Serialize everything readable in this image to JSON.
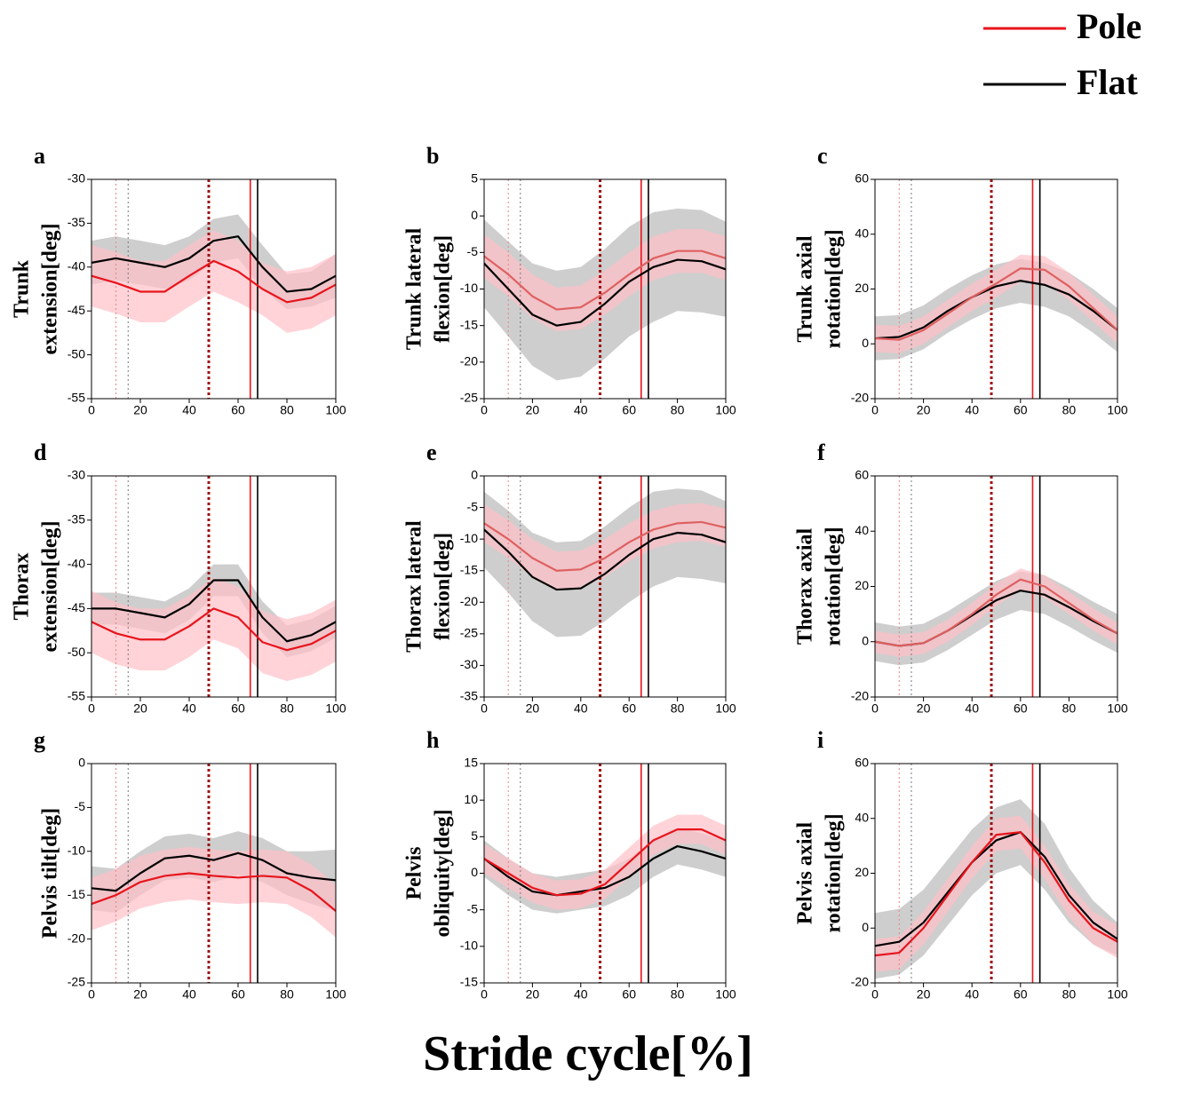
{
  "xlabel": "Stride cycle[%]",
  "events": [
    {
      "x": 10,
      "color": "#f08080",
      "style": "dotted"
    },
    {
      "x": 15,
      "color": "#777777",
      "style": "dotted"
    },
    {
      "x": 48,
      "color": "#a01010",
      "style": "thick-dotted"
    },
    {
      "x": 65,
      "color": "#e8141c",
      "style": "solid"
    },
    {
      "x": 68,
      "color": "#000000",
      "style": "solid"
    }
  ],
  "chart_data": [
    {
      "type": "line",
      "label": "a",
      "ylabel": [
        "Trunk",
        "extension[deg]"
      ],
      "x": [
        0,
        10,
        20,
        30,
        40,
        50,
        60,
        70,
        80,
        90,
        100
      ],
      "xlim": [
        0,
        100
      ],
      "xticks": [
        0,
        20,
        40,
        60,
        80,
        100
      ],
      "ylim": [
        -55,
        -30
      ],
      "yticks": [
        -55,
        -50,
        -45,
        -40,
        -35,
        -30
      ],
      "series": [
        {
          "name": "Pole",
          "color": "#e8141c",
          "band_color": "#ffc0c8",
          "values": [
            -41,
            -41.8,
            -42.8,
            -42.8,
            -41,
            -39.3,
            -40.5,
            -42.5,
            -44,
            -43.5,
            -42
          ],
          "sd": [
            3.5,
            3.5,
            3.5,
            3.5,
            3.5,
            3.5,
            3.5,
            3,
            3.5,
            3.5,
            3.5
          ]
        },
        {
          "name": "Flat",
          "color": "#000000",
          "band_color": "#bdbdbd",
          "values": [
            -39.5,
            -39,
            -39.5,
            -40,
            -39,
            -37,
            -36.5,
            -40,
            -42.8,
            -42.5,
            -41
          ],
          "sd": [
            2.5,
            2.5,
            2.5,
            2.5,
            2.5,
            2.5,
            2.5,
            2.5,
            2,
            2,
            2.5
          ]
        }
      ]
    },
    {
      "type": "line",
      "label": "b",
      "ylabel": [
        "Trunk lateral",
        "flexion[deg]"
      ],
      "x": [
        0,
        10,
        20,
        30,
        40,
        50,
        60,
        70,
        80,
        90,
        100
      ],
      "xlim": [
        0,
        100
      ],
      "xticks": [
        0,
        20,
        40,
        60,
        80,
        100
      ],
      "ylim": [
        -25,
        5
      ],
      "yticks": [
        -25,
        -20,
        -15,
        -10,
        -5,
        0,
        5
      ],
      "series": [
        {
          "name": "Pole",
          "color": "#e06060",
          "band_color": "#ffc0c8",
          "values": [
            -5.5,
            -8,
            -11,
            -12.8,
            -12.5,
            -10.5,
            -8,
            -5.8,
            -4.8,
            -4.8,
            -5.8
          ],
          "sd": [
            3,
            3,
            3,
            3,
            3,
            3,
            3,
            3,
            3,
            3,
            3
          ]
        },
        {
          "name": "Flat",
          "color": "#000000",
          "band_color": "#bdbdbd",
          "values": [
            -6.5,
            -10,
            -13.5,
            -15,
            -14.5,
            -12,
            -9,
            -7,
            -6,
            -6.2,
            -7.3
          ],
          "sd": [
            6,
            6.5,
            7,
            7.5,
            7.5,
            7.5,
            7.5,
            7.5,
            7,
            7,
            6.5
          ]
        }
      ]
    },
    {
      "type": "line",
      "label": "c",
      "ylabel": [
        "Trunk axial",
        "rotation[deg]"
      ],
      "x": [
        0,
        10,
        20,
        30,
        40,
        50,
        60,
        70,
        80,
        90,
        100
      ],
      "xlim": [
        0,
        100
      ],
      "xticks": [
        0,
        20,
        40,
        60,
        80,
        100
      ],
      "ylim": [
        -20,
        60
      ],
      "yticks": [
        -20,
        0,
        20,
        40,
        60
      ],
      "series": [
        {
          "name": "Pole",
          "color": "#e06060",
          "band_color": "#ffc0c8",
          "values": [
            2,
            1.5,
            5,
            11,
            17,
            22,
            27.5,
            27,
            21,
            13,
            5
          ],
          "sd": [
            5,
            5,
            5,
            5,
            5,
            5,
            5,
            5,
            5,
            5,
            5
          ]
        },
        {
          "name": "Flat",
          "color": "#000000",
          "band_color": "#bdbdbd",
          "values": [
            2,
            2.5,
            6,
            12,
            17,
            21,
            23,
            21.5,
            18,
            12,
            5
          ],
          "sd": [
            8,
            8,
            8,
            8,
            8,
            8,
            8,
            8,
            8,
            8,
            8
          ]
        }
      ]
    },
    {
      "type": "line",
      "label": "d",
      "ylabel": [
        "Thorax",
        "extension[deg]"
      ],
      "x": [
        0,
        10,
        20,
        30,
        40,
        50,
        60,
        70,
        80,
        90,
        100
      ],
      "xlim": [
        0,
        100
      ],
      "xticks": [
        0,
        20,
        40,
        60,
        80,
        100
      ],
      "ylim": [
        -55,
        -30
      ],
      "yticks": [
        -55,
        -50,
        -45,
        -40,
        -35,
        -30
      ],
      "series": [
        {
          "name": "Pole",
          "color": "#e8141c",
          "band_color": "#ffc0c8",
          "values": [
            -46.5,
            -47.8,
            -48.5,
            -48.5,
            -47,
            -45,
            -46,
            -48.8,
            -49.7,
            -49,
            -47.5
          ],
          "sd": [
            3.5,
            3.5,
            3.5,
            3.5,
            3.5,
            3.5,
            3.5,
            3.5,
            3.5,
            3.5,
            3.5
          ]
        },
        {
          "name": "Flat",
          "color": "#000000",
          "band_color": "#bdbdbd",
          "values": [
            -45,
            -45,
            -45.5,
            -46,
            -44.5,
            -41.8,
            -41.8,
            -46,
            -48.7,
            -48,
            -46.5
          ],
          "sd": [
            1.8,
            1.8,
            1.8,
            1.8,
            1.8,
            1.8,
            1.8,
            1.8,
            1.8,
            1.8,
            1.8
          ]
        }
      ]
    },
    {
      "type": "line",
      "label": "e",
      "ylabel": [
        "Thorax lateral",
        "flexion[deg]"
      ],
      "x": [
        0,
        10,
        20,
        30,
        40,
        50,
        60,
        70,
        80,
        90,
        100
      ],
      "xlim": [
        0,
        100
      ],
      "xticks": [
        0,
        20,
        40,
        60,
        80,
        100
      ],
      "ylim": [
        -35,
        0
      ],
      "yticks": [
        -35,
        -30,
        -25,
        -20,
        -15,
        -10,
        -5,
        0
      ],
      "series": [
        {
          "name": "Pole",
          "color": "#e06060",
          "band_color": "#ffc0c8",
          "values": [
            -7.5,
            -10,
            -13,
            -15,
            -14.8,
            -13,
            -10.5,
            -8.5,
            -7.5,
            -7.3,
            -8.2
          ],
          "sd": [
            3,
            3,
            3,
            3,
            3,
            3,
            3,
            3,
            3,
            3,
            3
          ]
        },
        {
          "name": "Flat",
          "color": "#000000",
          "band_color": "#bdbdbd",
          "values": [
            -8.5,
            -12,
            -16,
            -18,
            -17.8,
            -15.5,
            -12.5,
            -10,
            -9,
            -9.3,
            -10.5
          ],
          "sd": [
            6,
            6.5,
            7,
            7.5,
            7.5,
            7.5,
            7.5,
            7.5,
            7,
            7,
            6.5
          ]
        }
      ]
    },
    {
      "type": "line",
      "label": "f",
      "ylabel": [
        "Thorax axial",
        "rotation[deg]"
      ],
      "x": [
        0,
        10,
        20,
        30,
        40,
        50,
        60,
        70,
        80,
        90,
        100
      ],
      "xlim": [
        0,
        100
      ],
      "xticks": [
        0,
        20,
        40,
        60,
        80,
        100
      ],
      "ylim": [
        -20,
        60
      ],
      "yticks": [
        -20,
        0,
        20,
        40,
        60
      ],
      "series": [
        {
          "name": "Pole",
          "color": "#e06060",
          "band_color": "#ffc0c8",
          "values": [
            0,
            -1.5,
            -0.5,
            4,
            10,
            17,
            22.5,
            20,
            14,
            8,
            3
          ],
          "sd": [
            4,
            4,
            4,
            4,
            4,
            4,
            4,
            4,
            4,
            4,
            4
          ]
        },
        {
          "name": "Flat",
          "color": "#000000",
          "band_color": "#bdbdbd",
          "values": [
            0,
            -1.5,
            -0.5,
            4,
            9.5,
            15,
            18.5,
            17,
            12.5,
            7.5,
            3
          ],
          "sd": [
            7,
            7,
            7,
            7,
            7,
            7,
            7,
            7,
            7,
            7,
            7
          ]
        }
      ]
    },
    {
      "type": "line",
      "label": "g",
      "ylabel": [
        "Pelvis tilt[deg]"
      ],
      "x": [
        0,
        10,
        20,
        30,
        40,
        50,
        60,
        70,
        80,
        90,
        100
      ],
      "xlim": [
        0,
        100
      ],
      "xticks": [
        0,
        20,
        40,
        60,
        80,
        100
      ],
      "ylim": [
        -25,
        0
      ],
      "yticks": [
        -25,
        -20,
        -15,
        -10,
        -5,
        0
      ],
      "series": [
        {
          "name": "Pole",
          "color": "#e8141c",
          "band_color": "#ffc0c8",
          "values": [
            -16,
            -15,
            -13.5,
            -12.8,
            -12.5,
            -12.8,
            -13,
            -12.8,
            -13,
            -14.5,
            -16.8
          ],
          "sd": [
            3,
            3,
            3,
            3,
            3,
            3,
            3,
            3,
            3,
            3,
            3
          ]
        },
        {
          "name": "Flat",
          "color": "#000000",
          "band_color": "#bdbdbd",
          "values": [
            -14.2,
            -14.5,
            -12.5,
            -10.8,
            -10.5,
            -11,
            -10.2,
            -11,
            -12.5,
            -13,
            -13.3
          ],
          "sd": [
            2.5,
            2.5,
            2.5,
            2.5,
            2.5,
            2.5,
            2.5,
            2.5,
            2.5,
            3,
            3.5
          ]
        }
      ]
    },
    {
      "type": "line",
      "label": "h",
      "ylabel": [
        "Pelvis",
        "obliquity[deg]"
      ],
      "x": [
        0,
        10,
        20,
        30,
        40,
        50,
        60,
        70,
        80,
        90,
        100
      ],
      "xlim": [
        0,
        100
      ],
      "xticks": [
        0,
        20,
        40,
        60,
        80,
        100
      ],
      "ylim": [
        -15,
        15
      ],
      "yticks": [
        -15,
        -10,
        -5,
        0,
        5,
        10,
        15
      ],
      "series": [
        {
          "name": "Pole",
          "color": "#e8141c",
          "band_color": "#ffc0c8",
          "values": [
            2,
            0,
            -2,
            -3,
            -2.8,
            -1.5,
            1.5,
            4.5,
            6,
            6,
            4.5
          ],
          "sd": [
            2,
            2,
            2,
            2,
            2,
            2,
            2,
            2,
            2,
            2,
            2
          ]
        },
        {
          "name": "Flat",
          "color": "#000000",
          "band_color": "#bdbdbd",
          "values": [
            2,
            -0.5,
            -2.5,
            -3,
            -2.5,
            -2,
            -0.5,
            2,
            3.7,
            3,
            2
          ],
          "sd": [
            2.5,
            2.5,
            2.5,
            2.5,
            2.5,
            2.5,
            2.5,
            2.5,
            2.5,
            2.5,
            2.5
          ]
        }
      ]
    },
    {
      "type": "line",
      "label": "i",
      "ylabel": [
        "Pelvis axial",
        "rotation[deg]"
      ],
      "x": [
        0,
        10,
        20,
        30,
        40,
        50,
        60,
        70,
        80,
        90,
        100
      ],
      "xlim": [
        0,
        100
      ],
      "xticks": [
        0,
        20,
        40,
        60,
        80,
        100
      ],
      "ylim": [
        -20,
        60
      ],
      "yticks": [
        -20,
        0,
        20,
        40,
        60
      ],
      "series": [
        {
          "name": "Pole",
          "color": "#e8141c",
          "band_color": "#ffc0c8",
          "values": [
            -10,
            -9,
            0,
            12,
            24,
            34,
            35,
            24,
            10,
            0,
            -5
          ],
          "sd": [
            6,
            6,
            6,
            6,
            6,
            6,
            6,
            6,
            6,
            6,
            6
          ]
        },
        {
          "name": "Flat",
          "color": "#000000",
          "band_color": "#bdbdbd",
          "values": [
            -6.5,
            -5,
            2,
            13,
            24,
            32,
            35,
            26,
            12,
            2,
            -4
          ],
          "sd": [
            12,
            12,
            12,
            12,
            12,
            12,
            12,
            12,
            10,
            8,
            6
          ]
        }
      ]
    }
  ]
}
